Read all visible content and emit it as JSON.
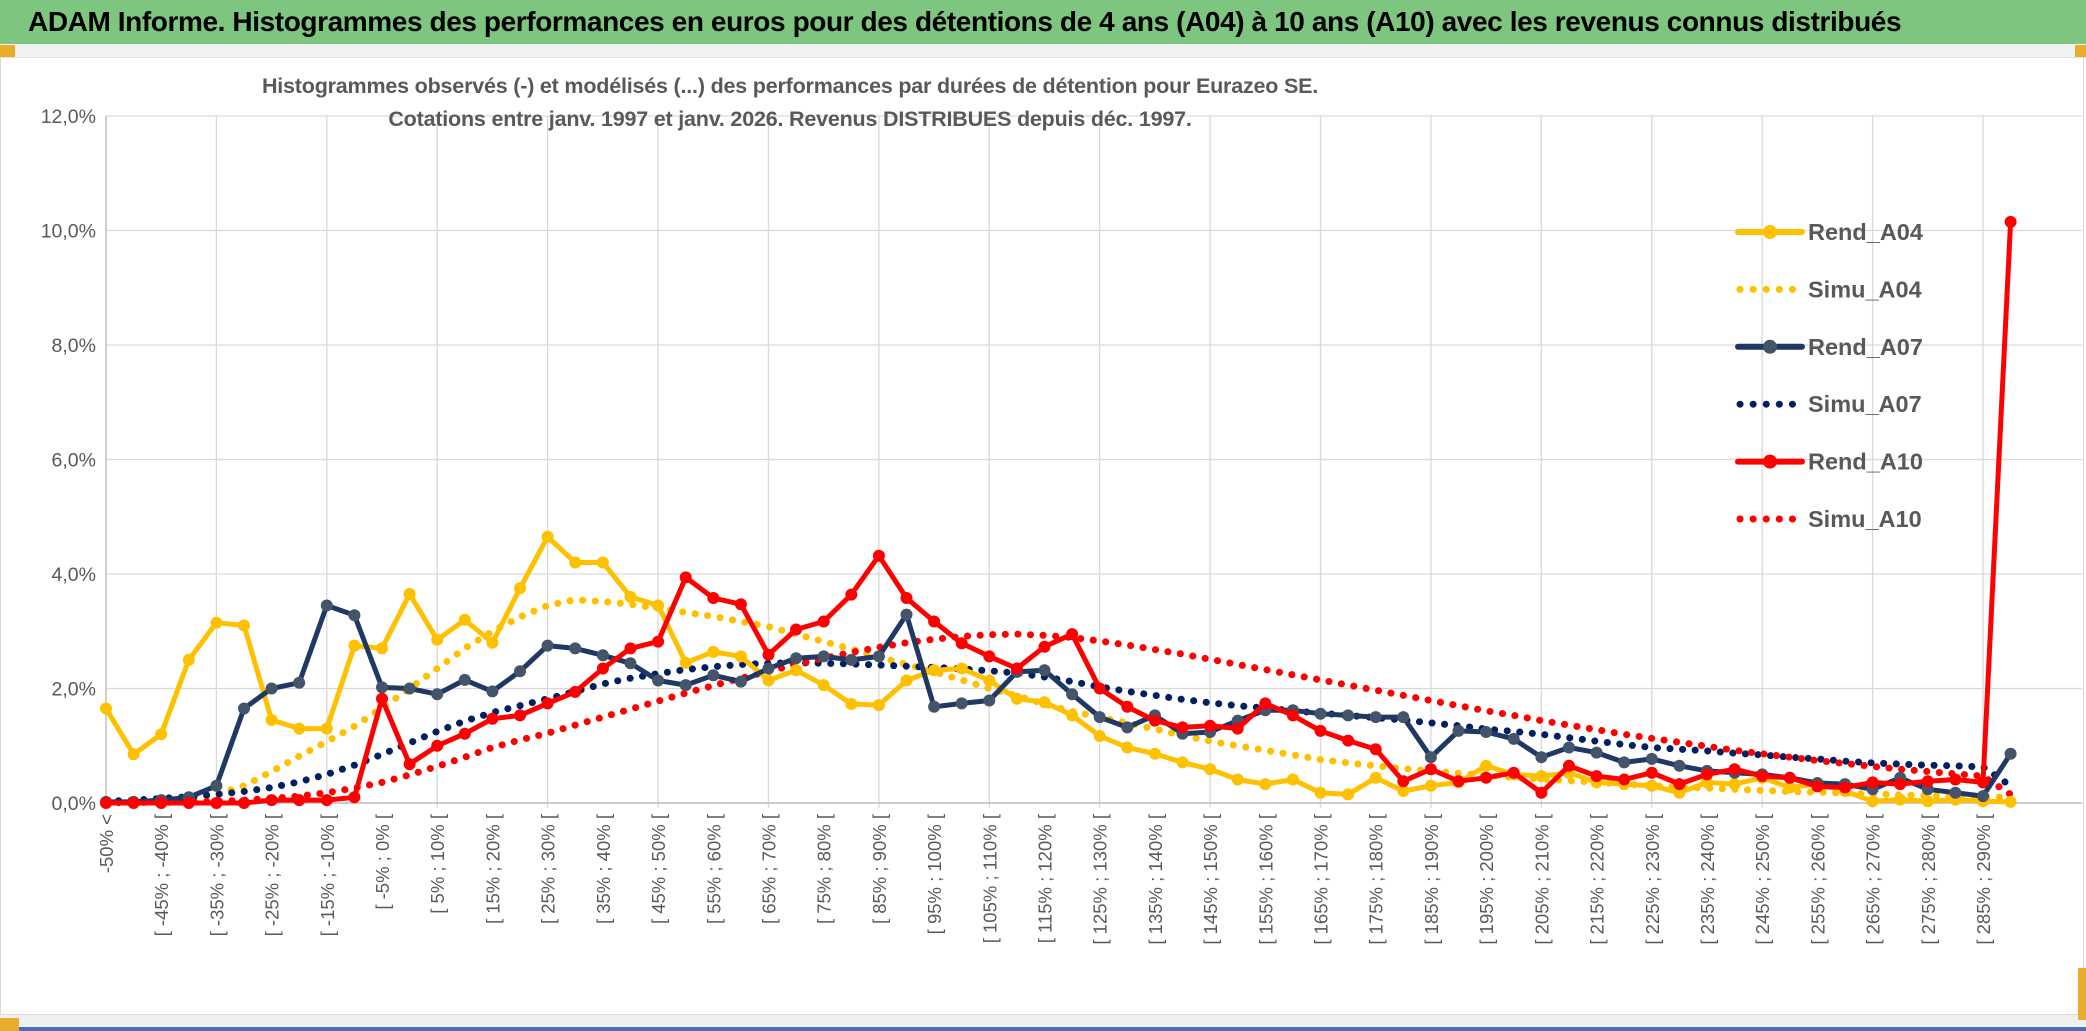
{
  "app": {
    "title": "ADAM Informe. Histogrammes des performances en euros pour des détentions de 4 ans (A04) à 10 ans (A10) avec les revenus connus distribués"
  },
  "chart_data": {
    "type": "line",
    "title": "Histogrammes observés (-) et modélisés (...) des performances par durées de détention pour Eurazeo SE.",
    "subtitle": "Cotations entre janv. 1997 et janv. 2026. Revenus DISTRIBUES depuis déc. 1997.",
    "ylim": [
      0,
      12
    ],
    "y_tick_step_pct": 2,
    "y_tick_labels": [
      "12,0%",
      "10,0%",
      "8,0%",
      "6,0%",
      "4,0%",
      "2,0%",
      "0,0%"
    ],
    "n_bins": 70,
    "x_label_every": 2,
    "x_tick_labels": [
      "-50% <",
      "[ -45% ; -40% [",
      "[ -35% ; -30% [",
      "[ -25% ; -20% [",
      "[ -15% ; -10% [",
      "[ -5% ; 0% [",
      "[ 5% ; 10% [",
      "[ 15% ; 20% [",
      "[ 25% ; 30% [",
      "[ 35% ; 40% [",
      "[ 45% ; 50% [",
      "[ 55% ; 60% [",
      "[ 65% ; 70% [",
      "[ 75% ; 80% [",
      "[ 85% ; 90% [",
      "[ 95% ; 100% [",
      "[ 105% ; 110% [",
      "[ 115% ; 120% [",
      "[ 125% ; 130% [",
      "[ 135% ; 140% [",
      "[ 145% ; 150% [",
      "[ 155% ; 160% [",
      "[ 165% ; 170% [",
      "[ 175% ; 180% [",
      "[ 185% ; 190% [",
      "[ 195% ; 200% [",
      "[ 205% ; 210% [",
      "[ 215% ; 220% [",
      "[ 225% ; 230% [",
      "[ 235% ; 240% [",
      "[ 245% ; 250% [",
      "[ 255% ; 260% [",
      "[ 265% ; 270% [",
      "[ 275% ; 280% [",
      "[ 285% ; 290% ["
    ],
    "grid": true,
    "legend_position": "right",
    "axis_color": "#bfbfbf",
    "grid_color": "#d9d9d9",
    "text_color": "#595959",
    "series": [
      {
        "name": "Rend_A04",
        "style": "solid",
        "color": "#FFC000",
        "marker_color": "#FFC000",
        "values": [
          1.65,
          0.85,
          1.2,
          2.5,
          3.15,
          3.1,
          1.45,
          1.3,
          1.3,
          2.75,
          2.7,
          3.65,
          2.85,
          3.2,
          2.8,
          3.75,
          4.65,
          4.2,
          4.2,
          3.6,
          3.45,
          2.45,
          2.64,
          2.56,
          2.14,
          2.32,
          2.06,
          1.73,
          1.71,
          2.14,
          2.32,
          2.35,
          2.14,
          1.82,
          1.76,
          1.53,
          1.17,
          0.97,
          0.86,
          0.71,
          0.59,
          0.41,
          0.33,
          0.41,
          0.18,
          0.15,
          0.44,
          0.21,
          0.3,
          0.36,
          0.65,
          0.5,
          0.47,
          0.53,
          0.36,
          0.33,
          0.3,
          0.18,
          0.36,
          0.33,
          0.44,
          0.27,
          0.33,
          0.21,
          0.03,
          0.06,
          0.03,
          0.06,
          0.03,
          0.02
        ]
      },
      {
        "name": "Simu_A04",
        "style": "dotted",
        "color": "#FFC000",
        "values": [
          0.02,
          0.04,
          0.06,
          0.1,
          0.15,
          0.3,
          0.55,
          0.82,
          1.07,
          1.34,
          1.66,
          2.0,
          2.35,
          2.7,
          3.0,
          3.25,
          3.45,
          3.55,
          3.52,
          3.47,
          3.4,
          3.33,
          3.26,
          3.17,
          3.08,
          2.95,
          2.82,
          2.69,
          2.55,
          2.42,
          2.29,
          2.15,
          2.0,
          1.87,
          1.73,
          1.6,
          1.5,
          1.4,
          1.29,
          1.18,
          1.08,
          1.0,
          0.92,
          0.84,
          0.76,
          0.7,
          0.65,
          0.6,
          0.56,
          0.52,
          0.48,
          0.45,
          0.42,
          0.39,
          0.36,
          0.33,
          0.3,
          0.28,
          0.26,
          0.24,
          0.22,
          0.2,
          0.19,
          0.17,
          0.16,
          0.14,
          0.13,
          0.12,
          0.11,
          0.1
        ]
      },
      {
        "name": "Rend_A07",
        "style": "solid",
        "color": "#1F3864",
        "marker_color": "#44546A",
        "values": [
          0.02,
          0.02,
          0.05,
          0.1,
          0.3,
          1.65,
          2.0,
          2.1,
          3.45,
          3.28,
          2.02,
          2.0,
          1.9,
          2.15,
          1.95,
          2.3,
          2.75,
          2.7,
          2.58,
          2.44,
          2.14,
          2.06,
          2.23,
          2.12,
          2.35,
          2.53,
          2.56,
          2.5,
          2.56,
          3.29,
          1.68,
          1.74,
          1.79,
          2.29,
          2.32,
          1.9,
          1.5,
          1.32,
          1.53,
          1.21,
          1.24,
          1.44,
          1.62,
          1.62,
          1.56,
          1.53,
          1.5,
          1.5,
          0.8,
          1.26,
          1.24,
          1.12,
          0.8,
          0.97,
          0.88,
          0.71,
          0.77,
          0.65,
          0.56,
          0.53,
          0.5,
          0.44,
          0.35,
          0.33,
          0.24,
          0.44,
          0.24,
          0.18,
          0.12,
          0.86
        ]
      },
      {
        "name": "Simu_A07",
        "style": "dotted",
        "color": "#002060",
        "values": [
          0.03,
          0.05,
          0.08,
          0.11,
          0.15,
          0.2,
          0.27,
          0.37,
          0.5,
          0.66,
          0.85,
          1.05,
          1.25,
          1.43,
          1.58,
          1.7,
          1.82,
          1.95,
          2.08,
          2.18,
          2.26,
          2.33,
          2.38,
          2.42,
          2.44,
          2.45,
          2.44,
          2.43,
          2.41,
          2.39,
          2.37,
          2.34,
          2.31,
          2.27,
          2.2,
          2.12,
          2.03,
          1.95,
          1.88,
          1.81,
          1.75,
          1.7,
          1.66,
          1.61,
          1.57,
          1.53,
          1.49,
          1.45,
          1.4,
          1.35,
          1.29,
          1.25,
          1.2,
          1.14,
          1.08,
          1.02,
          0.97,
          0.94,
          0.91,
          0.87,
          0.84,
          0.8,
          0.77,
          0.73,
          0.7,
          0.68,
          0.66,
          0.65,
          0.63,
          0.3
        ]
      },
      {
        "name": "Rend_A10",
        "style": "solid",
        "color": "#FF0000",
        "marker_color": "#FF0000",
        "values": [
          0,
          0,
          0,
          0,
          0,
          0,
          0.05,
          0.05,
          0.05,
          0.1,
          1.82,
          0.68,
          1.0,
          1.21,
          1.47,
          1.53,
          1.74,
          1.94,
          2.35,
          2.7,
          2.82,
          3.94,
          3.58,
          3.47,
          2.59,
          3.03,
          3.17,
          3.64,
          4.32,
          3.58,
          3.17,
          2.79,
          2.56,
          2.35,
          2.73,
          2.95,
          2.0,
          1.68,
          1.44,
          1.32,
          1.35,
          1.3,
          1.74,
          1.53,
          1.26,
          1.09,
          0.94,
          0.38,
          0.59,
          0.38,
          0.44,
          0.53,
          0.18,
          0.65,
          0.47,
          0.41,
          0.53,
          0.33,
          0.5,
          0.59,
          0.47,
          0.44,
          0.29,
          0.27,
          0.36,
          0.33,
          0.38,
          0.41,
          0.36,
          10.15
        ]
      },
      {
        "name": "Simu_A10",
        "style": "dotted",
        "color": "#FF0000",
        "values": [
          0,
          0.01,
          0.01,
          0.02,
          0.03,
          0.05,
          0.08,
          0.12,
          0.18,
          0.26,
          0.36,
          0.49,
          0.64,
          0.8,
          0.97,
          1.1,
          1.22,
          1.36,
          1.5,
          1.64,
          1.78,
          1.92,
          2.05,
          2.18,
          2.3,
          2.42,
          2.53,
          2.63,
          2.72,
          2.8,
          2.86,
          2.91,
          2.94,
          2.95,
          2.93,
          2.89,
          2.83,
          2.76,
          2.68,
          2.6,
          2.51,
          2.42,
          2.33,
          2.24,
          2.15,
          2.06,
          1.97,
          1.88,
          1.79,
          1.7,
          1.61,
          1.53,
          1.44,
          1.36,
          1.28,
          1.2,
          1.13,
          1.06,
          0.99,
          0.92,
          0.86,
          0.8,
          0.74,
          0.69,
          0.64,
          0.59,
          0.55,
          0.51,
          0.47,
          0.15
        ]
      }
    ]
  }
}
